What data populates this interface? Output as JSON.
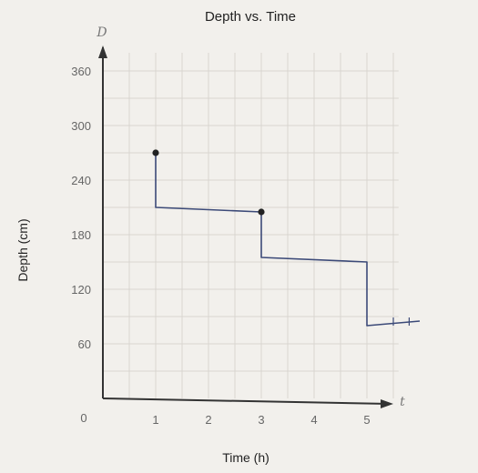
{
  "chart_data": {
    "type": "line",
    "title": "Depth vs. Time",
    "xlabel": "Time (h)",
    "ylabel": "Depth (cm)",
    "x_var": "t",
    "y_var": "D",
    "origin_label": "0",
    "x_ticks": [
      1,
      2,
      3,
      4,
      5
    ],
    "y_ticks": [
      60,
      120,
      180,
      240,
      300,
      360
    ],
    "xlim": [
      0,
      6
    ],
    "ylim": [
      0,
      380
    ],
    "grid": true,
    "series": [
      {
        "values": [
          [
            1,
            270
          ],
          [
            1,
            210
          ],
          [
            3,
            205
          ],
          [
            3,
            155
          ],
          [
            5,
            150
          ],
          [
            5,
            80
          ],
          [
            6,
            85
          ]
        ]
      }
    ],
    "points": [
      {
        "x": 1,
        "y": 270
      },
      {
        "x": 3,
        "y": 205
      }
    ]
  }
}
